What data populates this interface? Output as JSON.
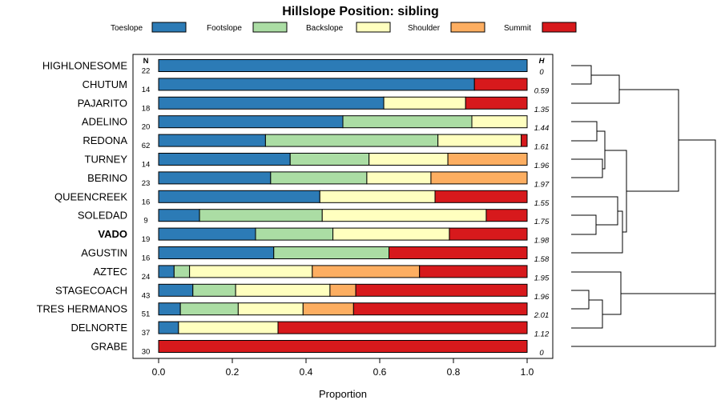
{
  "chart_data": {
    "type": "bar",
    "orientation": "horizontal-stacked",
    "title": "Hillslope Position: sibling",
    "xlabel": "Proportion",
    "xlim": [
      0,
      1
    ],
    "xticks": [
      "0.0",
      "0.2",
      "0.4",
      "0.6",
      "0.8",
      "1.0"
    ],
    "header_n": "N",
    "header_h": "H",
    "legend": [
      {
        "name": "Toeslope",
        "color": "#2c7bb6"
      },
      {
        "name": "Footslope",
        "color": "#abdda4"
      },
      {
        "name": "Backslope",
        "color": "#ffffbf"
      },
      {
        "name": "Shoulder",
        "color": "#fdae61"
      },
      {
        "name": "Summit",
        "color": "#d7191c"
      }
    ],
    "rows": [
      {
        "label": "HIGHLONESOME",
        "n": "22",
        "h": "0",
        "bold": false,
        "values": [
          1.0,
          0,
          0,
          0,
          0
        ]
      },
      {
        "label": "CHUTUM",
        "n": "14",
        "h": "0.59",
        "bold": false,
        "values": [
          0.857,
          0,
          0,
          0,
          0.143
        ]
      },
      {
        "label": "PAJARITO",
        "n": "18",
        "h": "1.35",
        "bold": false,
        "values": [
          0.611,
          0,
          0.222,
          0,
          0.167
        ]
      },
      {
        "label": "ADELINO",
        "n": "20",
        "h": "1.44",
        "bold": false,
        "values": [
          0.5,
          0.35,
          0.15,
          0,
          0
        ]
      },
      {
        "label": "REDONA",
        "n": "62",
        "h": "1.61",
        "bold": false,
        "values": [
          0.29,
          0.468,
          0.226,
          0,
          0.016
        ]
      },
      {
        "label": "TURNEY",
        "n": "14",
        "h": "1.96",
        "bold": false,
        "values": [
          0.357,
          0.214,
          0.214,
          0.215,
          0
        ]
      },
      {
        "label": "BERINO",
        "n": "23",
        "h": "1.97",
        "bold": false,
        "values": [
          0.304,
          0.261,
          0.174,
          0.261,
          0
        ]
      },
      {
        "label": "QUEENCREEK",
        "n": "16",
        "h": "1.55",
        "bold": false,
        "values": [
          0.4375,
          0,
          0.3125,
          0,
          0.25
        ]
      },
      {
        "label": "SOLEDAD",
        "n": "9",
        "h": "1.75",
        "bold": false,
        "values": [
          0.111,
          0.333,
          0.445,
          0,
          0.111
        ]
      },
      {
        "label": "VADO",
        "n": "19",
        "h": "1.98",
        "bold": true,
        "values": [
          0.263,
          0.21,
          0.316,
          0,
          0.211
        ]
      },
      {
        "label": "AGUSTIN",
        "n": "16",
        "h": "1.58",
        "bold": false,
        "values": [
          0.3125,
          0.3125,
          0,
          0,
          0.375
        ]
      },
      {
        "label": "AZTEC",
        "n": "24",
        "h": "1.95",
        "bold": false,
        "values": [
          0.042,
          0.042,
          0.333,
          0.291,
          0.292
        ]
      },
      {
        "label": "STAGECOACH",
        "n": "43",
        "h": "1.96",
        "bold": false,
        "values": [
          0.093,
          0.116,
          0.256,
          0.07,
          0.465
        ]
      },
      {
        "label": "TRES HERMANOS",
        "n": "51",
        "h": "2.01",
        "bold": false,
        "values": [
          0.059,
          0.157,
          0.176,
          0.137,
          0.471
        ]
      },
      {
        "label": "DELNORTE",
        "n": "37",
        "h": "1.12",
        "bold": false,
        "values": [
          0.054,
          0,
          0.27,
          0,
          0.676
        ]
      },
      {
        "label": "GRABE",
        "n": "30",
        "h": "0",
        "bold": false,
        "values": [
          0,
          0,
          0,
          0,
          1.0
        ]
      }
    ]
  }
}
